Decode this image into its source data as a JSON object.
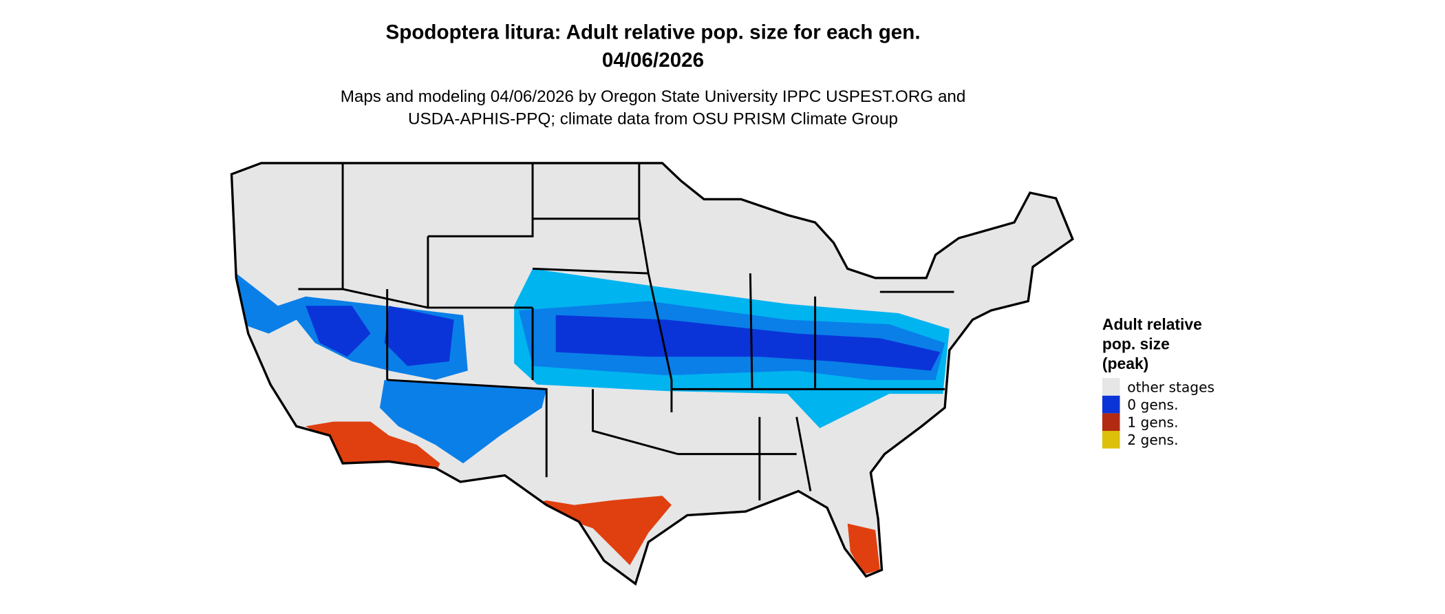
{
  "header": {
    "title_lines": [
      "Spodoptera litura: Adult relative pop. size for each gen.",
      "04/06/2026"
    ],
    "subtitle_lines": [
      "Maps and modeling 04/06/2026 by Oregon State University IPPC USPEST.ORG and",
      "USDA-APHIS-PPQ; climate data from OSU PRISM Climate Group"
    ]
  },
  "legend": {
    "title_lines": [
      "Adult relative",
      "pop. size",
      "(peak)"
    ],
    "items": [
      {
        "label": "other stages",
        "color": "#e6e6e6"
      },
      {
        "label": "0 gens.",
        "color": "#0a34d8"
      },
      {
        "label": "1 gens.",
        "color": "#b22a12"
      },
      {
        "label": "2 gens.",
        "color": "#dcc00a"
      }
    ]
  }
}
